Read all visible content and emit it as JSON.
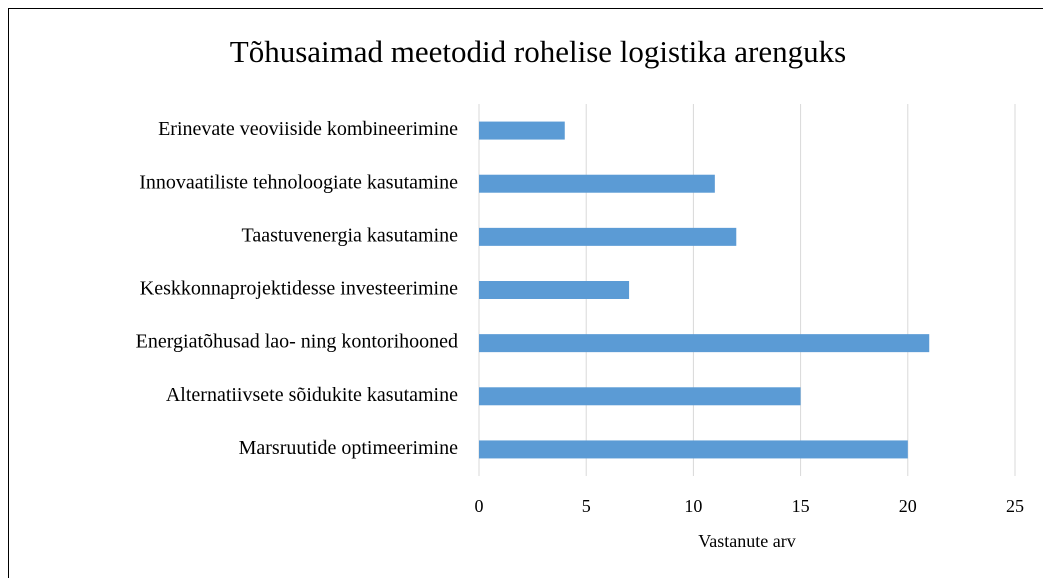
{
  "chart_data": {
    "type": "barh",
    "title": "Tõhusaimad meetodid rohelise logistika arenguks",
    "categories": [
      "Erinevate veoviiside kombineerimine",
      "Innovaatiliste tehnoloogiate kasutamine",
      "Taastuvenergia kasutamine",
      "Keskkonnaprojektidesse investeerimine",
      "Energiatõhusad lao- ning kontorihooned",
      "Alternatiivsete sõidukite kasutamine",
      "Marsruutide optimeerimine"
    ],
    "values": [
      4,
      11,
      12,
      7,
      21,
      15,
      20
    ],
    "color": "#5b9bd5",
    "xlabel": "Vastanute arv",
    "xlim": [
      0,
      25
    ],
    "xticks": [
      0,
      5,
      10,
      15,
      20,
      25
    ],
    "grid": true
  }
}
